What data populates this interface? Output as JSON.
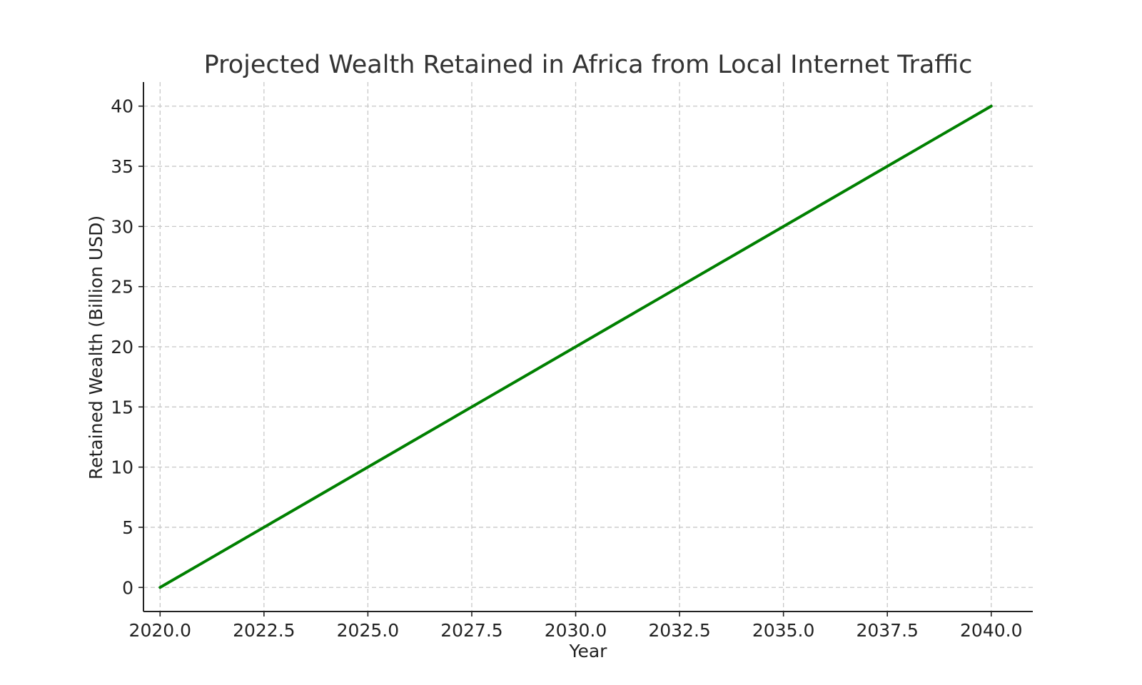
{
  "chart_data": {
    "type": "line",
    "title": "Projected Wealth Retained in Africa from Local Internet Traffic",
    "xlabel": "Year",
    "ylabel": "Retained Wealth (Billion USD)",
    "xlim": [
      2019.6,
      2041.0
    ],
    "ylim": [
      -2.0,
      42.0
    ],
    "x_ticks": [
      2020.0,
      2022.5,
      2025.0,
      2027.5,
      2030.0,
      2032.5,
      2035.0,
      2037.5,
      2040.0
    ],
    "x_tick_labels": [
      "2020.0",
      "2022.5",
      "2025.0",
      "2027.5",
      "2030.0",
      "2032.5",
      "2035.0",
      "2037.5",
      "2040.0"
    ],
    "y_ticks": [
      0,
      5,
      10,
      15,
      20,
      25,
      30,
      35,
      40
    ],
    "y_tick_labels": [
      "0",
      "5",
      "10",
      "15",
      "20",
      "25",
      "30",
      "35",
      "40"
    ],
    "grid": true,
    "legend": "none",
    "series": [
      {
        "color": "#008000",
        "x": [
          2020,
          2021,
          2022,
          2023,
          2024,
          2025,
          2026,
          2027,
          2028,
          2029,
          2030,
          2031,
          2032,
          2033,
          2034,
          2035,
          2036,
          2037,
          2038,
          2039,
          2040
        ],
        "y": [
          0,
          2,
          4,
          6,
          8,
          10,
          12,
          14,
          16,
          18,
          20,
          22,
          24,
          26,
          28,
          30,
          32,
          34,
          36,
          38,
          40
        ]
      }
    ]
  }
}
